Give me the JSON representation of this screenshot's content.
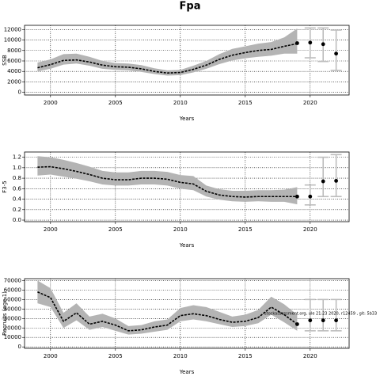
{
  "title": "Fpa",
  "chart_data": [
    {
      "type": "line",
      "ylabel": "SSB",
      "xlabel": "Years",
      "x": [
        1999,
        2000,
        2001,
        2002,
        2003,
        2004,
        2005,
        2006,
        2007,
        2008,
        2009,
        2010,
        2011,
        2012,
        2013,
        2014,
        2015,
        2016,
        2017,
        2018,
        2019
      ],
      "values": [
        4700,
        5300,
        6100,
        6200,
        5800,
        5200,
        4900,
        4800,
        4500,
        4000,
        3700,
        3800,
        4400,
        5200,
        6300,
        7100,
        7600,
        8000,
        8200,
        8800,
        9300
      ],
      "lower": [
        4000,
        4500,
        5300,
        5500,
        5100,
        4500,
        4300,
        4200,
        3900,
        3500,
        3200,
        3300,
        3800,
        4500,
        5400,
        6100,
        6500,
        6800,
        7000,
        7400,
        7400
      ],
      "upper": [
        5700,
        6300,
        7300,
        7400,
        6800,
        6000,
        5600,
        5500,
        5200,
        4600,
        4200,
        4300,
        5100,
        6000,
        7300,
        8300,
        8800,
        9300,
        9600,
        10500,
        12200
      ],
      "points": {
        "x": [
          2019,
          2020,
          2021,
          2022
        ],
        "values": [
          9400,
          9500,
          9200,
          7400
        ],
        "low": [
          null,
          6600,
          5900,
          4200
        ],
        "high": [
          null,
          12300,
          12300,
          11900
        ]
      },
      "color": "#000000",
      "band_color": "#b4b4b4",
      "errorbar_color": "#bdbdbd",
      "xlim": [
        1998,
        2023
      ],
      "xticks": [
        2000,
        2005,
        2010,
        2015,
        2020
      ],
      "ylim": [
        -500,
        12800
      ],
      "yticks": [
        0,
        2000,
        4000,
        6000,
        8000,
        10000,
        12000
      ],
      "grid": true
    },
    {
      "type": "line",
      "ylabel": "F3-5",
      "xlabel": "Years",
      "x": [
        1999,
        2000,
        2001,
        2002,
        2003,
        2004,
        2005,
        2006,
        2007,
        2008,
        2009,
        2010,
        2011,
        2012,
        2013,
        2014,
        2015,
        2016,
        2017,
        2018,
        2019
      ],
      "values": [
        1.01,
        1.02,
        0.98,
        0.93,
        0.87,
        0.8,
        0.77,
        0.77,
        0.8,
        0.8,
        0.78,
        0.72,
        0.69,
        0.55,
        0.48,
        0.45,
        0.44,
        0.45,
        0.45,
        0.45,
        0.45
      ],
      "lower": [
        0.85,
        0.87,
        0.83,
        0.79,
        0.74,
        0.68,
        0.66,
        0.66,
        0.68,
        0.68,
        0.66,
        0.6,
        0.57,
        0.45,
        0.39,
        0.36,
        0.35,
        0.36,
        0.35,
        0.35,
        0.3
      ],
      "upper": [
        1.22,
        1.2,
        1.15,
        1.09,
        1.02,
        0.94,
        0.91,
        0.91,
        0.94,
        0.94,
        0.92,
        0.86,
        0.84,
        0.66,
        0.59,
        0.56,
        0.56,
        0.57,
        0.57,
        0.58,
        0.63
      ],
      "points": {
        "x": [
          2019,
          2020,
          2021,
          2022
        ],
        "values": [
          0.45,
          0.45,
          0.74,
          0.75
        ],
        "low": [
          null,
          0.29,
          0.45,
          0.45
        ],
        "high": [
          null,
          0.67,
          1.2,
          1.25
        ]
      },
      "color": "#000000",
      "band_color": "#b4b4b4",
      "errorbar_color": "#bdbdbd",
      "xlim": [
        1998,
        2023
      ],
      "xticks": [
        2000,
        2005,
        2010,
        2015,
        2020
      ],
      "ylim": [
        -0.03,
        1.3
      ],
      "yticks": [
        {
          "value": 0,
          "label": "0.0"
        },
        0.2,
        0.4,
        0.6,
        0.8,
        {
          "value": 1,
          "label": "1.0"
        },
        1.2
      ],
      "grid": true
    },
    {
      "type": "line",
      "ylabel": "Recruits (age 1)",
      "xlabel": "Years",
      "x": [
        1999,
        2000,
        2001,
        2002,
        2003,
        2004,
        2005,
        2006,
        2007,
        2008,
        2009,
        2010,
        2011,
        2012,
        2013,
        2014,
        2015,
        2016,
        2017,
        2018,
        2019
      ],
      "values": [
        58000,
        52000,
        27000,
        36000,
        24000,
        27000,
        23000,
        17000,
        18000,
        21000,
        23000,
        33000,
        35000,
        33000,
        29000,
        26000,
        27000,
        31000,
        42000,
        34000,
        24000
      ],
      "lower": [
        46000,
        42000,
        20000,
        28000,
        18000,
        21000,
        17000,
        13000,
        14000,
        16000,
        18000,
        27000,
        29000,
        27000,
        24000,
        21000,
        22000,
        25000,
        34000,
        26000,
        17000
      ],
      "upper": [
        70000,
        62000,
        36000,
        46000,
        32000,
        35000,
        30000,
        22000,
        23000,
        27000,
        29000,
        41000,
        44000,
        42000,
        37000,
        32000,
        34000,
        39000,
        53000,
        45000,
        34000
      ],
      "points": {
        "x": [
          2019,
          2020,
          2021,
          2022
        ],
        "values": [
          24000,
          28000,
          28000,
          28000
        ],
        "low": [
          null,
          17000,
          17000,
          17000
        ],
        "high": [
          null,
          50000,
          50000,
          50000
        ]
      },
      "color": "#000000",
      "band_color": "#b4b4b4",
      "errorbar_color": "#bdbdbd",
      "xlim": [
        1998,
        2023
      ],
      "xticks": [
        2000,
        2005,
        2010,
        2015,
        2020
      ],
      "ylim": [
        -1500,
        72000
      ],
      "yticks": [
        0,
        10000,
        20000,
        30000,
        40000,
        50000,
        60000,
        70000
      ],
      "grid": true,
      "annotation": "stockassessment.org, ule 21:23 2020, r12459 , git: 5b33"
    }
  ]
}
